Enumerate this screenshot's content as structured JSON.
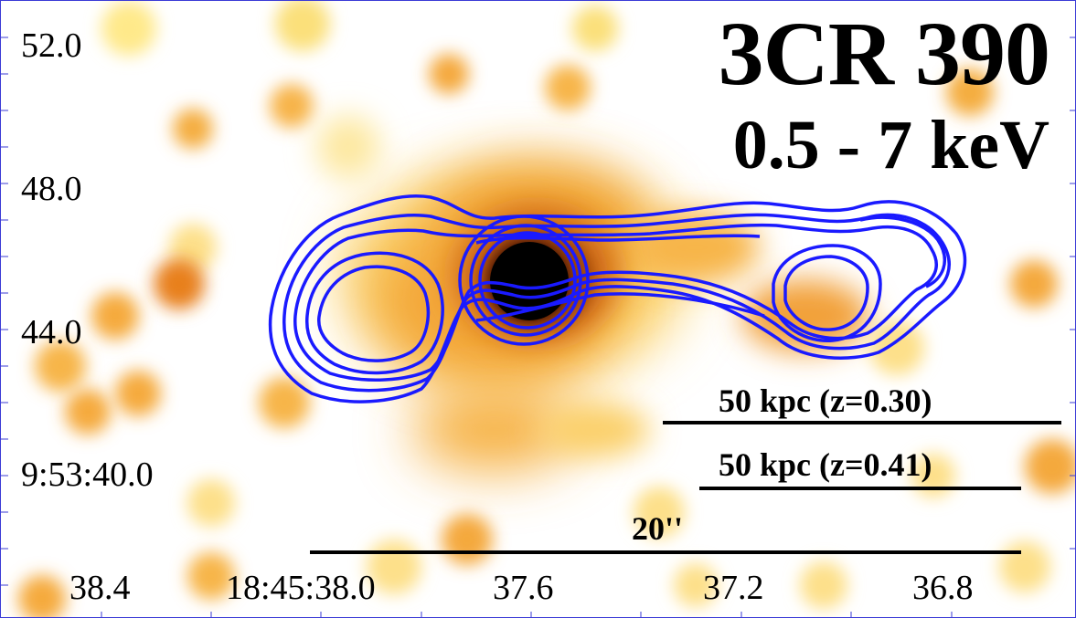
{
  "title": {
    "object": "3CR 390",
    "band": "0.5 - 7 keV"
  },
  "axes": {
    "dec_ticks": [
      "52.0",
      "48.0",
      "44.0",
      "9:53:40.0"
    ],
    "ra_ticks": [
      "38.4",
      "18:45:38.0",
      "37.6",
      "37.2",
      "36.8"
    ]
  },
  "scale_bars": [
    {
      "label": "50 kpc (z=0.30)"
    },
    {
      "label": "50 kpc (z=0.41)"
    },
    {
      "label": "20''"
    }
  ],
  "colors": {
    "background": "#ffffff",
    "xray_colormap": [
      "#ffffff",
      "#fff6b0",
      "#ffd45a",
      "#f59a2a",
      "#c25a10",
      "#5a1e04",
      "#000000"
    ],
    "radio_contours": "#1a1aff",
    "frame": "#3b3bd6",
    "text": "#000000"
  }
}
